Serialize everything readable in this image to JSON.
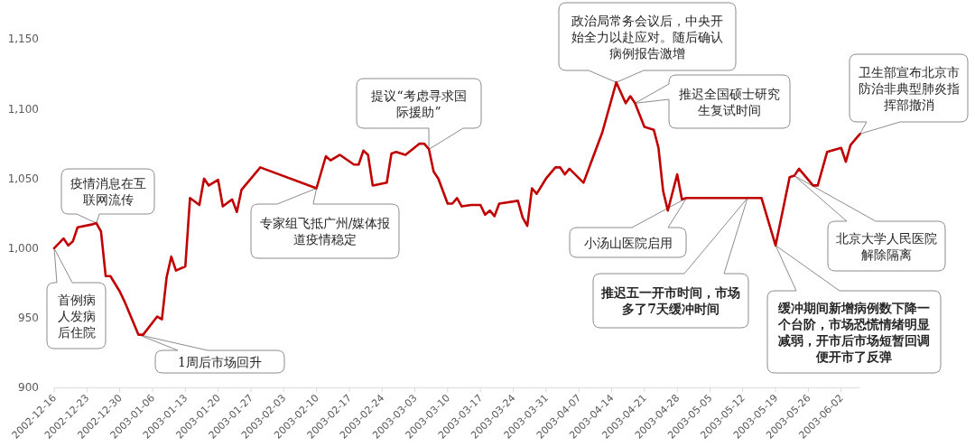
{
  "chart_data": {
    "type": "line",
    "x": [
      "2002-12-16",
      "2002-12-18",
      "2002-12-19",
      "2002-12-20",
      "2002-12-21",
      "2002-12-24",
      "2002-12-25",
      "2002-12-26",
      "2002-12-27",
      "2002-12-28",
      "2002-12-30",
      "2002-12-31",
      "2003-01-03",
      "2003-01-04",
      "2003-01-07",
      "2003-01-08",
      "2003-01-09",
      "2003-01-10",
      "2003-01-11",
      "2003-01-13",
      "2003-01-14",
      "2003-01-16",
      "2003-01-17",
      "2003-01-18",
      "2003-01-20",
      "2003-01-21",
      "2003-01-23",
      "2003-01-24",
      "2003-01-25",
      "2003-01-29",
      "2003-02-10",
      "2003-02-12",
      "2003-02-13",
      "2003-02-15",
      "2003-02-18",
      "2003-02-19",
      "2003-02-20",
      "2003-02-21",
      "2003-02-22",
      "2003-02-25",
      "2003-02-26",
      "2003-02-27",
      "2003-03-01",
      "2003-03-04",
      "2003-03-05",
      "2003-03-06",
      "2003-03-07",
      "2003-03-08",
      "2003-03-10",
      "2003-03-11",
      "2003-03-12",
      "2003-03-13",
      "2003-03-15",
      "2003-03-17",
      "2003-03-18",
      "2003-03-19",
      "2003-03-20",
      "2003-03-21",
      "2003-03-25",
      "2003-03-26",
      "2003-03-27",
      "2003-03-28",
      "2003-03-29",
      "2003-03-31",
      "2003-04-02",
      "2003-04-03",
      "2003-04-04",
      "2003-04-05",
      "2003-04-08",
      "2003-04-10",
      "2003-04-12",
      "2003-04-15",
      "2003-04-17",
      "2003-04-18",
      "2003-04-19",
      "2003-04-21",
      "2003-04-23",
      "2003-04-24",
      "2003-04-25",
      "2003-04-26",
      "2003-04-28",
      "2003-04-29",
      "2003-04-30",
      "2003-05-16",
      "2003-05-19",
      "2003-05-22",
      "2003-05-23",
      "2003-05-24",
      "2003-05-27",
      "2003-05-28",
      "2003-05-30",
      "2003-06-02",
      "2003-06-03",
      "2003-06-04",
      "2003-06-06"
    ],
    "series": [
      {
        "color": "#c00000",
        "values": [
          1000,
          1007,
          1002,
          1005,
          1015,
          1017,
          1018,
          1012,
          980,
          980,
          969,
          962,
          938,
          938,
          951,
          949,
          979,
          994,
          984,
          987,
          1036,
          1031,
          1050,
          1045,
          1049,
          1030,
          1035,
          1026,
          1042,
          1058,
          1043,
          1066,
          1063,
          1067,
          1060,
          1060,
          1070,
          1067,
          1045,
          1047,
          1068,
          1069,
          1067,
          1075,
          1075,
          1071,
          1055,
          1050,
          1032,
          1032,
          1036,
          1030,
          1031,
          1031,
          1024,
          1027,
          1023,
          1032,
          1034,
          1022,
          1016,
          1043,
          1039,
          1050,
          1058,
          1058,
          1053,
          1057,
          1047,
          1065,
          1083,
          1119,
          1104,
          1109,
          1104,
          1087,
          1085,
          1072,
          1041,
          1027,
          1053,
          1035,
          1036,
          1036,
          1002,
          1051,
          1052,
          1057,
          1045,
          1045,
          1069,
          1072,
          1062,
          1074,
          1082
        ]
      }
    ],
    "xlim": [
      "2002-12-16",
      "2003-06-06"
    ],
    "xticks": [
      "2002-12-16",
      "2002-12-23",
      "2002-12-30",
      "2003-01-06",
      "2003-01-13",
      "2003-01-20",
      "2003-01-27",
      "2003-02-03",
      "2003-02-10",
      "2003-02-17",
      "2003-02-24",
      "2003-03-03",
      "2003-03-10",
      "2003-03-17",
      "2003-03-24",
      "2003-03-31",
      "2003-04-07",
      "2003-04-14",
      "2003-04-21",
      "2003-04-28",
      "2003-05-05",
      "2003-05-12",
      "2003-05-19",
      "2003-05-26",
      "2003-06-02"
    ],
    "ylim": [
      900,
      1150
    ],
    "yticks": [
      900,
      950,
      {
        "value": 1000,
        "label": "1,000"
      },
      {
        "value": 1050,
        "label": "1,050"
      },
      {
        "value": 1100,
        "label": "1,100"
      },
      {
        "value": 1150,
        "label": "1,150"
      }
    ],
    "annotations": [
      "首例病人发病后住院",
      {
        "text": "疫情消息在互联网流传",
        "x": "2002-12-25",
        "y": 1018
      },
      "1周后市场回升",
      {
        "text": "专家组飞抵广州/媒体报道疫情稳定",
        "x": "2003-02-10",
        "y": 1043
      },
      {
        "text": "提议“考虑寻求国际援助”",
        "x": "2003-03-06",
        "y": 1071
      },
      {
        "text": "政治局常务会议后，中央开始全力以赴应对。随后确认病例报告激增",
        "x": "2003-04-15",
        "y": 1119
      },
      "推迟全国硕士研究生复试时间",
      "小汤山医院启用",
      "推迟五一开市时间，市场多了7天缓冲时间",
      "缓冲期间新增病例数下降一个台阶，市场恐慌情绪明显减弱，开市后市场短暂回调便开市了反弹",
      "北京大学人民医院解除隔离",
      {
        "text": "卫生部宣布北京市防治非典型肺炎指挥部撤消",
        "x": "2003-06-06",
        "y": 1082
      }
    ]
  }
}
